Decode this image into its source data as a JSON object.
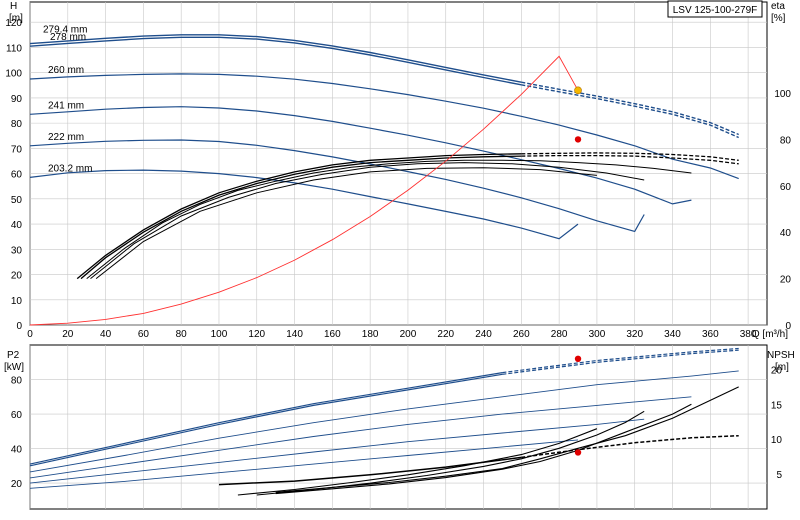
{
  "model": "LSV 125-100-279F",
  "colors": {
    "head": "#1f4e8c",
    "eff": "#000000",
    "system": "#ff3030",
    "opPointTop": "#f5b800",
    "opPoint": "#e00000",
    "grid": "#c8c8c8"
  },
  "chart_data": [
    {
      "type": "line",
      "panel": "pump-curves",
      "xlabel": "Q [m³/h]",
      "x_ticks": [
        0,
        20,
        40,
        60,
        80,
        100,
        120,
        140,
        160,
        180,
        200,
        220,
        240,
        260,
        280,
        300,
        320,
        340,
        360,
        380
      ],
      "xlim": [
        0,
        390
      ],
      "y_left": {
        "label_line1": "H",
        "label_line2": "[m]",
        "ticks": [
          0,
          10,
          20,
          30,
          40,
          50,
          60,
          70,
          80,
          90,
          100,
          110,
          120
        ],
        "lim": [
          0,
          128
        ]
      },
      "y_right": {
        "label_line1": "eta",
        "label_line2": "[%]",
        "ticks": [
          0,
          20,
          40,
          60,
          80,
          100
        ],
        "lim": [
          0,
          100
        ]
      },
      "head_series": [
        {
          "name": "279.4 mm",
          "x": [
            0,
            20,
            40,
            60,
            80,
            100,
            120,
            140,
            160,
            180,
            200,
            220,
            240,
            260,
            280,
            300,
            320,
            340,
            360,
            375
          ],
          "y": [
            111.5,
            112.6,
            113.6,
            114.5,
            115.0,
            115.0,
            114.3,
            112.8,
            110.6,
            108.0,
            105.1,
            102.1,
            99.1,
            96.2,
            93.4,
            90.7,
            87.7,
            84.5,
            80.2,
            75.5
          ]
        },
        {
          "name": "278 mm",
          "x": [
            0,
            20,
            40,
            60,
            80,
            100,
            120,
            140,
            160,
            180,
            200,
            220,
            240,
            260,
            280,
            300,
            320,
            340,
            360,
            375
          ],
          "y": [
            110.5,
            111.6,
            112.6,
            113.5,
            114.0,
            114.0,
            113.3,
            111.8,
            109.6,
            107.0,
            104.1,
            101.1,
            98.1,
            95.2,
            92.4,
            89.7,
            86.7,
            83.5,
            79.2,
            74.3
          ]
        },
        {
          "name": "260 mm",
          "x": [
            0,
            20,
            40,
            60,
            80,
            100,
            120,
            140,
            160,
            180,
            200,
            220,
            240,
            260,
            280,
            300,
            320,
            340,
            360,
            375
          ],
          "y": [
            97.5,
            98.3,
            98.9,
            99.3,
            99.5,
            99.3,
            98.6,
            97.4,
            95.7,
            93.6,
            91.3,
            88.7,
            85.9,
            82.7,
            79.2,
            75.3,
            71.0,
            65.7,
            62.2,
            58.0
          ]
        },
        {
          "name": "241 mm",
          "x": [
            0,
            20,
            40,
            60,
            80,
            100,
            120,
            140,
            160,
            180,
            200,
            220,
            240,
            260,
            280,
            300,
            320,
            340,
            350
          ],
          "y": [
            83.5,
            84.5,
            85.5,
            86.2,
            86.5,
            86.0,
            84.8,
            83.0,
            80.7,
            78.0,
            75.2,
            72.2,
            68.9,
            65.5,
            62.0,
            58.2,
            53.8,
            48.0,
            49.5
          ]
        },
        {
          "name": "222 mm",
          "x": [
            0,
            20,
            40,
            60,
            80,
            100,
            120,
            140,
            160,
            180,
            200,
            220,
            240,
            260,
            280,
            300,
            320,
            325
          ],
          "y": [
            71.0,
            72.0,
            72.8,
            73.2,
            73.3,
            72.7,
            71.2,
            69.1,
            66.6,
            63.8,
            60.8,
            57.7,
            54.2,
            50.4,
            46.1,
            41.3,
            37.1,
            43.8
          ]
        },
        {
          "name": "203.2 mm",
          "x": [
            0,
            20,
            40,
            60,
            80,
            100,
            120,
            140,
            160,
            180,
            200,
            220,
            240,
            260,
            280,
            290
          ],
          "y": [
            58.5,
            60.3,
            61.2,
            61.4,
            61.0,
            60.0,
            58.4,
            56.3,
            53.8,
            50.9,
            48.0,
            45.0,
            42.0,
            38.4,
            34.2,
            40.0
          ]
        }
      ],
      "efficiency_series_eta_pct": [
        {
          "x": [
            25,
            40,
            60,
            80,
            100,
            120,
            140,
            160,
            180,
            200,
            220,
            240,
            260,
            280,
            300,
            320,
            340,
            360,
            375
          ],
          "y": [
            20,
            30,
            41,
            50,
            57,
            62,
            66,
            69,
            71,
            72,
            73,
            73.5,
            73.8,
            74,
            74.2,
            74,
            73.5,
            72.5,
            71
          ]
        },
        {
          "x": [
            27,
            40,
            60,
            80,
            100,
            120,
            140,
            160,
            180,
            200,
            220,
            240,
            260,
            280,
            300,
            320,
            340,
            360,
            375
          ],
          "y": [
            20,
            29,
            40,
            49,
            56,
            61,
            65,
            68,
            70,
            71,
            72,
            72.5,
            72.8,
            73,
            73,
            72.8,
            72,
            71,
            69.5
          ]
        },
        {
          "x": [
            30,
            50,
            70,
            90,
            110,
            130,
            150,
            170,
            190,
            210,
            230,
            250,
            270,
            290,
            310,
            330,
            350
          ],
          "y": [
            20,
            33,
            44,
            52,
            58,
            62,
            65.5,
            68,
            69.5,
            70.5,
            71,
            71,
            70.8,
            70,
            69,
            67.5,
            65.5
          ]
        },
        {
          "x": [
            32,
            55,
            80,
            105,
            130,
            155,
            180,
            205,
            230,
            255,
            280,
            305,
            325
          ],
          "y": [
            20,
            35,
            47,
            55,
            61,
            65,
            68,
            69.5,
            70,
            69.5,
            68,
            65.5,
            62.5
          ]
        },
        {
          "x": [
            35,
            60,
            90,
            120,
            150,
            180,
            210,
            240,
            270,
            300
          ],
          "y": [
            20,
            36,
            49,
            57,
            62.5,
            66,
            67.5,
            67.8,
            67,
            64.5
          ]
        }
      ],
      "system_curve": {
        "x": [
          0,
          20,
          40,
          60,
          80,
          100,
          120,
          140,
          160,
          180,
          200,
          220,
          240,
          260,
          280,
          290
        ],
        "y": [
          0,
          0.7,
          2.2,
          4.6,
          8.3,
          13.0,
          18.8,
          25.7,
          33.8,
          43.0,
          53.4,
          64.9,
          77.6,
          91.4,
          106.5,
          93.0
        ]
      },
      "operating_point_head": {
        "x": 290,
        "y": 93.0
      },
      "operating_point_eff": {
        "x": 290,
        "y_eta": 80
      },
      "dashed_from_x": 262
    },
    {
      "type": "line",
      "panel": "power-npsh",
      "xlim": [
        0,
        390
      ],
      "y_left": {
        "label_line1": "P2",
        "label_line2": "[kW]",
        "ticks": [
          20,
          40,
          60,
          80
        ],
        "lim": [
          5,
          100
        ]
      },
      "y_right": {
        "label_line1": "NPSH",
        "label_line2": "[m]",
        "ticks": [
          5,
          10,
          15,
          20
        ],
        "lim": [
          0,
          23.5
        ]
      },
      "power_series": [
        {
          "x": [
            0,
            50,
            100,
            150,
            200,
            250,
            300,
            350,
            375
          ],
          "y": [
            31,
            43,
            55,
            66,
            75,
            84,
            91,
            96,
            98
          ]
        },
        {
          "x": [
            0,
            50,
            100,
            150,
            200,
            250,
            300,
            350,
            375
          ],
          "y": [
            30,
            42,
            54,
            65,
            74,
            83,
            90,
            95,
            97
          ]
        },
        {
          "x": [
            0,
            50,
            100,
            150,
            200,
            250,
            300,
            350,
            375
          ],
          "y": [
            26.5,
            36,
            46,
            55,
            63,
            70,
            77,
            82,
            85
          ]
        },
        {
          "x": [
            0,
            50,
            100,
            150,
            200,
            250,
            300,
            350
          ],
          "y": [
            23,
            31,
            39,
            47,
            54,
            60,
            65,
            70
          ]
        },
        {
          "x": [
            0,
            50,
            100,
            150,
            200,
            250,
            300,
            325
          ],
          "y": [
            20,
            26,
            32,
            38,
            44,
            49,
            54,
            57
          ]
        },
        {
          "x": [
            0,
            50,
            100,
            150,
            200,
            250,
            290
          ],
          "y": [
            17,
            21,
            26,
            31,
            36,
            41,
            45
          ]
        }
      ],
      "npsh_series": [
        {
          "x": [
            100,
            140,
            180,
            220,
            260,
            290,
            320,
            350,
            375
          ],
          "y": [
            3.5,
            4.0,
            4.9,
            6.0,
            7.4,
            8.5,
            9.5,
            10.2,
            10.5
          ]
        },
        {
          "x": [
            130,
            160,
            190,
            220,
            250,
            270,
            290,
            315,
            340,
            375
          ],
          "y": [
            2.4,
            3.1,
            3.8,
            4.7,
            5.8,
            7.2,
            8.7,
            10.5,
            13.0,
            17.5
          ]
        },
        {
          "x": [
            130,
            160,
            190,
            220,
            250,
            270,
            290,
            315,
            340,
            350
          ],
          "y": [
            2.2,
            2.9,
            3.6,
            4.5,
            5.7,
            6.8,
            8.4,
            11.0,
            13.6,
            15.0
          ]
        },
        {
          "x": [
            120,
            150,
            180,
            210,
            240,
            260,
            280,
            300,
            315,
            325
          ],
          "y": [
            2.0,
            2.8,
            3.7,
            4.8,
            6.1,
            7.2,
            8.7,
            10.6,
            12.4,
            14.0
          ]
        },
        {
          "x": [
            110,
            140,
            170,
            200,
            230,
            260,
            280,
            300
          ],
          "y": [
            2.0,
            2.8,
            3.8,
            4.9,
            6.2,
            7.8,
            9.4,
            11.5
          ]
        }
      ],
      "operating_point_power": {
        "x": 290,
        "y": 92
      },
      "operating_point_npsh": {
        "x": 290,
        "y": 8.1
      },
      "dashed_from_x": 262
    }
  ]
}
